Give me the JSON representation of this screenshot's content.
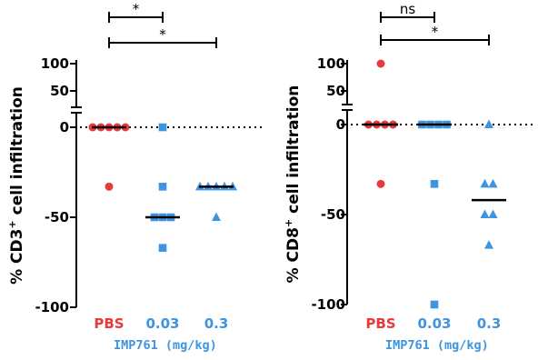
{
  "colors": {
    "pbs": "#e8393b",
    "imp": "#3d94e0",
    "axis": "#000000"
  },
  "chart_data": [
    {
      "type": "scatter",
      "ylabel": {
        "prefix": "% CD3",
        "sup": "+",
        "suffix": " cell infiltration"
      },
      "categories": [
        "PBS",
        "0.03",
        "0.3"
      ],
      "group_label": "IMP761 (mg/kg)",
      "y_ticks_lower": [
        "0",
        "-50",
        "-100"
      ],
      "y_ticks_upper": [
        "100",
        "50"
      ],
      "ylim": [
        -100,
        100
      ],
      "reference_line": 0,
      "series": [
        {
          "category": "PBS",
          "marker": "circle",
          "values": [
            0,
            0,
            0,
            0,
            0,
            -33
          ],
          "median": 0
        },
        {
          "category": "0.03",
          "marker": "square",
          "values": [
            0,
            -33,
            -50,
            -50,
            -50,
            -67
          ],
          "median": -50
        },
        {
          "category": "0.3",
          "marker": "triangle",
          "values": [
            -33,
            -33,
            -33,
            -33,
            -33,
            -50
          ],
          "median": -33
        }
      ],
      "comparisons": [
        {
          "from": "PBS",
          "to": "0.03",
          "label": "*"
        },
        {
          "from": "PBS",
          "to": "0.3",
          "label": "*"
        }
      ]
    },
    {
      "type": "scatter",
      "ylabel": {
        "prefix": "% CD8",
        "sup": "+",
        "suffix": " cell infiltration"
      },
      "categories": [
        "PBS",
        "0.03",
        "0.3"
      ],
      "group_label": "IMP761 (mg/kg)",
      "y_ticks_lower": [
        "0",
        "-50",
        "-100"
      ],
      "y_ticks_upper": [
        "100",
        "50"
      ],
      "ylim": [
        -100,
        100
      ],
      "reference_line": 0,
      "series": [
        {
          "category": "PBS",
          "marker": "circle",
          "values": [
            100,
            0,
            0,
            0,
            0,
            -33
          ],
          "median": 0
        },
        {
          "category": "0.03",
          "marker": "square",
          "values": [
            0,
            0,
            0,
            0,
            -33,
            -100
          ],
          "median": 0
        },
        {
          "category": "0.3",
          "marker": "triangle",
          "values": [
            0,
            -33,
            -33,
            -50,
            -50,
            -67
          ],
          "median": -42
        }
      ],
      "comparisons": [
        {
          "from": "PBS",
          "to": "0.03",
          "label": "ns"
        },
        {
          "from": "PBS",
          "to": "0.3",
          "label": "*"
        }
      ]
    }
  ]
}
